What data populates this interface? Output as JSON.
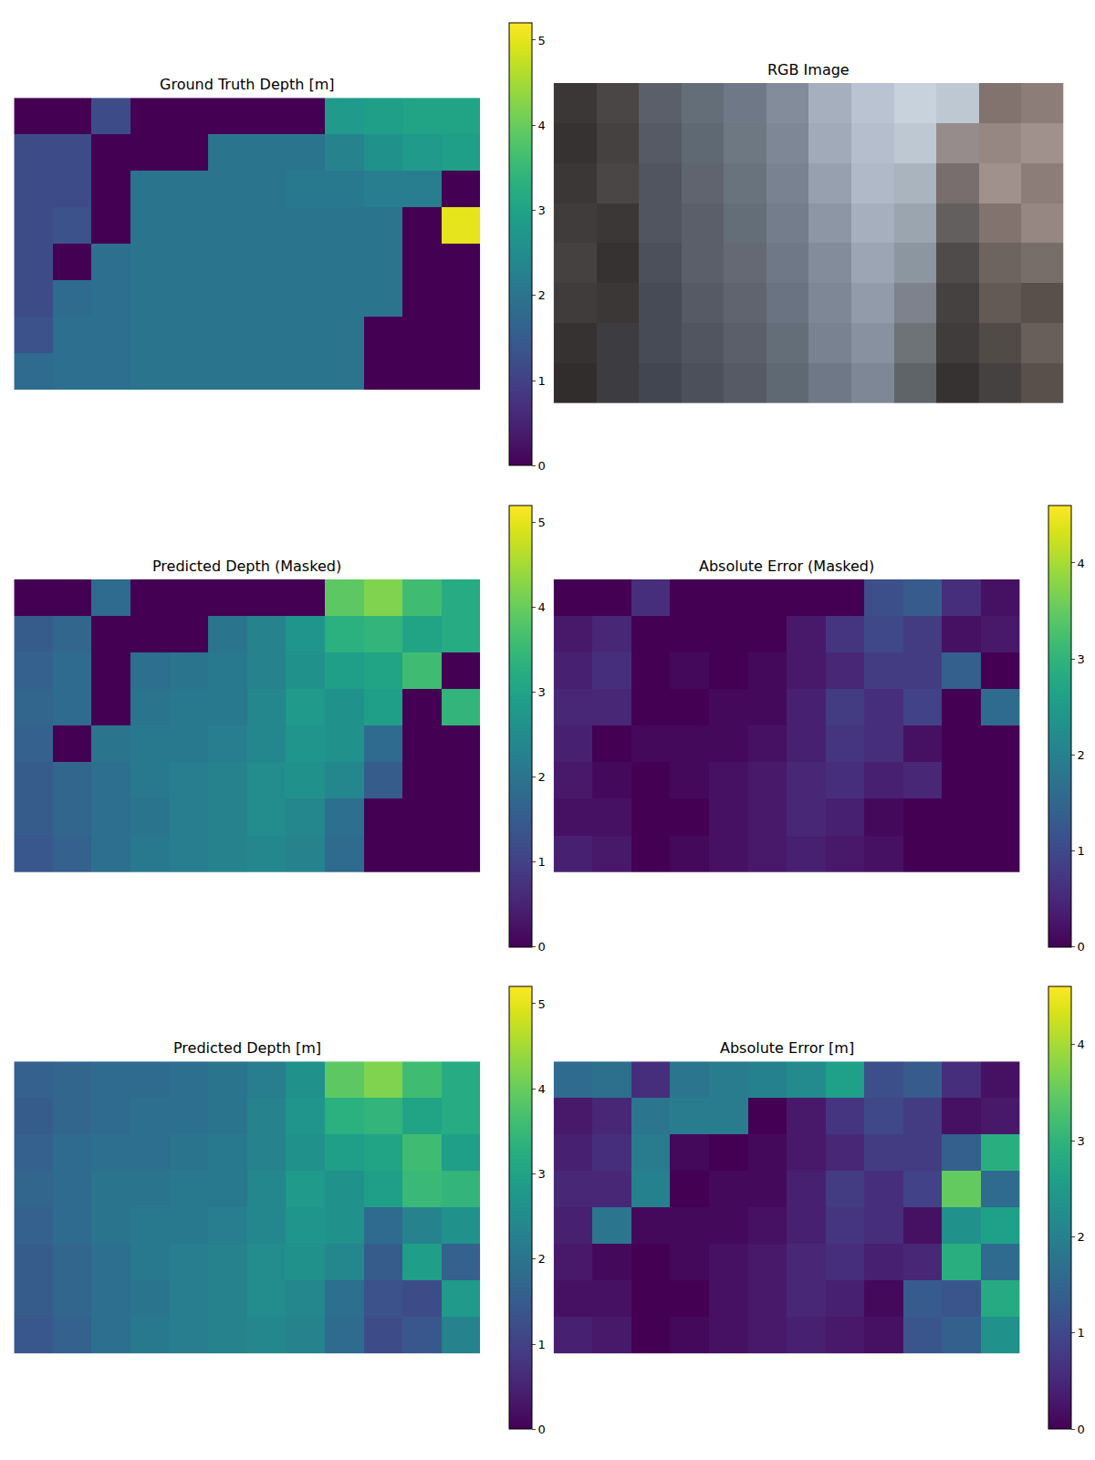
{
  "chart_data": [
    {
      "type": "heatmap",
      "title": "Ground Truth Depth [m]",
      "color": "viridis",
      "tick_labels": false,
      "colorbar_range": [
        0,
        5.2
      ],
      "colorbar_ticks": [
        0,
        1,
        2,
        3,
        4,
        5
      ],
      "z": [
        [
          0,
          0,
          1.2,
          0,
          0,
          0,
          0,
          0,
          2.8,
          2.9,
          3.0,
          3.0
        ],
        [
          1.2,
          1.2,
          0,
          0,
          0,
          2.0,
          2.0,
          2.0,
          2.3,
          2.6,
          2.8,
          2.9
        ],
        [
          1.2,
          1.2,
          0,
          2.0,
          2.0,
          2.0,
          2.0,
          2.1,
          2.1,
          2.2,
          2.2,
          0
        ],
        [
          1.2,
          1.3,
          0,
          2.0,
          2.0,
          2.0,
          2.0,
          2.0,
          2.0,
          2.0,
          0,
          5.0
        ],
        [
          1.2,
          0,
          1.9,
          2.0,
          2.0,
          2.0,
          2.0,
          2.0,
          2.0,
          2.0,
          0,
          0
        ],
        [
          1.2,
          1.8,
          1.9,
          2.0,
          2.0,
          2.0,
          2.0,
          2.0,
          2.0,
          2.0,
          0,
          0
        ],
        [
          1.3,
          1.9,
          1.9,
          2.0,
          2.0,
          2.0,
          2.0,
          2.0,
          2.0,
          0,
          0,
          0
        ],
        [
          1.8,
          1.9,
          1.9,
          2.0,
          2.0,
          2.0,
          2.0,
          2.0,
          2.0,
          0,
          0,
          0
        ]
      ]
    },
    {
      "type": "image",
      "title": "RGB Image",
      "tick_labels": false,
      "pixels": [
        [
          [
            60,
            55,
            55
          ],
          [
            75,
            70,
            70
          ],
          [
            90,
            95,
            105
          ],
          [
            100,
            110,
            120
          ],
          [
            110,
            120,
            135
          ],
          [
            130,
            140,
            155
          ],
          [
            165,
            175,
            190
          ],
          [
            185,
            195,
            210
          ],
          [
            200,
            210,
            220
          ],
          [
            190,
            200,
            210
          ],
          [
            130,
            115,
            110
          ],
          [
            140,
            125,
            120
          ]
        ],
        [
          [
            55,
            50,
            50
          ],
          [
            70,
            65,
            65
          ],
          [
            85,
            90,
            100
          ],
          [
            95,
            105,
            115
          ],
          [
            110,
            120,
            130
          ],
          [
            125,
            135,
            150
          ],
          [
            160,
            170,
            185
          ],
          [
            180,
            190,
            205
          ],
          [
            190,
            200,
            210
          ],
          [
            150,
            140,
            140
          ],
          [
            150,
            135,
            130
          ],
          [
            160,
            145,
            140
          ]
        ],
        [
          [
            60,
            55,
            55
          ],
          [
            75,
            70,
            70
          ],
          [
            80,
            85,
            95
          ],
          [
            95,
            100,
            110
          ],
          [
            105,
            115,
            125
          ],
          [
            120,
            130,
            145
          ],
          [
            150,
            160,
            175
          ],
          [
            175,
            185,
            200
          ],
          [
            170,
            180,
            190
          ],
          [
            120,
            110,
            110
          ],
          [
            160,
            145,
            140
          ],
          [
            140,
            125,
            120
          ]
        ],
        [
          [
            65,
            60,
            60
          ],
          [
            60,
            55,
            55
          ],
          [
            80,
            85,
            95
          ],
          [
            90,
            95,
            105
          ],
          [
            100,
            110,
            120
          ],
          [
            115,
            125,
            140
          ],
          [
            140,
            150,
            165
          ],
          [
            165,
            175,
            190
          ],
          [
            155,
            165,
            175
          ],
          [
            100,
            95,
            95
          ],
          [
            130,
            115,
            110
          ],
          [
            150,
            135,
            130
          ]
        ],
        [
          [
            70,
            65,
            65
          ],
          [
            55,
            50,
            50
          ],
          [
            75,
            80,
            90
          ],
          [
            90,
            95,
            105
          ],
          [
            100,
            105,
            115
          ],
          [
            110,
            120,
            135
          ],
          [
            130,
            140,
            155
          ],
          [
            155,
            165,
            180
          ],
          [
            140,
            150,
            160
          ],
          [
            80,
            75,
            75
          ],
          [
            110,
            100,
            95
          ],
          [
            120,
            110,
            105
          ]
        ],
        [
          [
            65,
            60,
            60
          ],
          [
            60,
            55,
            55
          ],
          [
            70,
            75,
            85
          ],
          [
            85,
            90,
            100
          ],
          [
            95,
            100,
            110
          ],
          [
            105,
            115,
            130
          ],
          [
            125,
            135,
            150
          ],
          [
            145,
            155,
            170
          ],
          [
            125,
            130,
            140
          ],
          [
            70,
            65,
            65
          ],
          [
            100,
            90,
            85
          ],
          [
            90,
            80,
            75
          ]
        ],
        [
          [
            55,
            50,
            50
          ],
          [
            60,
            60,
            65
          ],
          [
            70,
            75,
            85
          ],
          [
            80,
            85,
            95
          ],
          [
            90,
            95,
            105
          ],
          [
            100,
            110,
            120
          ],
          [
            120,
            130,
            145
          ],
          [
            135,
            145,
            160
          ],
          [
            110,
            115,
            120
          ],
          [
            65,
            60,
            60
          ],
          [
            80,
            75,
            70
          ],
          [
            105,
            95,
            90
          ]
        ],
        [
          [
            50,
            45,
            45
          ],
          [
            60,
            60,
            65
          ],
          [
            65,
            70,
            80
          ],
          [
            75,
            80,
            90
          ],
          [
            85,
            90,
            100
          ],
          [
            95,
            105,
            115
          ],
          [
            110,
            120,
            135
          ],
          [
            125,
            135,
            150
          ],
          [
            95,
            100,
            105
          ],
          [
            55,
            50,
            50
          ],
          [
            70,
            65,
            65
          ],
          [
            90,
            80,
            75
          ]
        ]
      ]
    },
    {
      "type": "heatmap",
      "title": "Predicted Depth (Masked)",
      "color": "viridis",
      "tick_labels": false,
      "colorbar_range": [
        0,
        5.2
      ],
      "colorbar_ticks": [
        0,
        1,
        2,
        3,
        4,
        5
      ],
      "z": [
        [
          0,
          0,
          1.8,
          0,
          0,
          0,
          0,
          0,
          3.9,
          4.2,
          3.6,
          3.2
        ],
        [
          1.5,
          1.7,
          0,
          0,
          0,
          2.0,
          2.3,
          2.7,
          3.3,
          3.4,
          3.0,
          3.2
        ],
        [
          1.6,
          1.8,
          0,
          1.9,
          2.0,
          2.1,
          2.3,
          2.6,
          2.9,
          3.0,
          3.6,
          0
        ],
        [
          1.7,
          1.8,
          0,
          2.0,
          2.1,
          2.1,
          2.4,
          2.8,
          2.6,
          2.9,
          0,
          3.4
        ],
        [
          1.6,
          0,
          2.0,
          2.1,
          2.1,
          2.2,
          2.4,
          2.7,
          2.6,
          1.8,
          0,
          0
        ],
        [
          1.5,
          1.7,
          1.9,
          2.1,
          2.2,
          2.3,
          2.5,
          2.6,
          2.4,
          1.5,
          0,
          0
        ],
        [
          1.5,
          1.7,
          1.9,
          2.0,
          2.2,
          2.3,
          2.5,
          2.4,
          1.9,
          0,
          0,
          0
        ],
        [
          1.4,
          1.6,
          1.9,
          2.1,
          2.2,
          2.3,
          2.4,
          2.3,
          1.8,
          0,
          0,
          0
        ]
      ]
    },
    {
      "type": "heatmap",
      "title": "Absolute Error (Masked)",
      "color": "viridis",
      "tick_labels": false,
      "colorbar_range": [
        0,
        4.6
      ],
      "colorbar_ticks": [
        0,
        1,
        2,
        3,
        4
      ],
      "z": [
        [
          0,
          0,
          0.6,
          0,
          0,
          0,
          0,
          0,
          1.1,
          1.3,
          0.6,
          0.2
        ],
        [
          0.3,
          0.5,
          0,
          0,
          0,
          0.0,
          0.3,
          0.7,
          1.0,
          0.8,
          0.2,
          0.3
        ],
        [
          0.4,
          0.6,
          0,
          0.1,
          0.0,
          0.1,
          0.3,
          0.5,
          0.8,
          0.8,
          1.4,
          0
        ],
        [
          0.5,
          0.5,
          0,
          0.0,
          0.1,
          0.1,
          0.4,
          0.8,
          0.6,
          0.9,
          0,
          1.6
        ],
        [
          0.4,
          0,
          0.1,
          0.1,
          0.1,
          0.2,
          0.4,
          0.7,
          0.6,
          0.2,
          0,
          0
        ],
        [
          0.3,
          0.1,
          0.0,
          0.1,
          0.2,
          0.3,
          0.5,
          0.6,
          0.4,
          0.5,
          0,
          0
        ],
        [
          0.2,
          0.2,
          0.0,
          0.0,
          0.2,
          0.3,
          0.5,
          0.4,
          0.1,
          0,
          0,
          0
        ],
        [
          0.4,
          0.3,
          0.0,
          0.1,
          0.2,
          0.3,
          0.4,
          0.3,
          0.2,
          0,
          0,
          0
        ]
      ]
    },
    {
      "type": "heatmap",
      "title": "Predicted Depth [m]",
      "color": "viridis",
      "tick_labels": false,
      "colorbar_range": [
        0,
        5.2
      ],
      "colorbar_ticks": [
        0,
        1,
        2,
        3,
        4,
        5
      ],
      "z": [
        [
          1.6,
          1.7,
          1.8,
          1.8,
          1.9,
          2.0,
          2.2,
          2.6,
          3.9,
          4.2,
          3.6,
          3.2
        ],
        [
          1.5,
          1.7,
          1.8,
          1.9,
          1.9,
          2.0,
          2.3,
          2.7,
          3.3,
          3.4,
          3.0,
          3.2
        ],
        [
          1.6,
          1.8,
          1.9,
          1.9,
          2.0,
          2.1,
          2.3,
          2.6,
          2.9,
          3.0,
          3.6,
          2.9
        ],
        [
          1.7,
          1.8,
          2.0,
          2.0,
          2.1,
          2.1,
          2.4,
          2.8,
          2.6,
          2.9,
          3.5,
          3.4
        ],
        [
          1.6,
          1.8,
          2.0,
          2.1,
          2.1,
          2.2,
          2.4,
          2.7,
          2.6,
          1.8,
          2.3,
          2.6
        ],
        [
          1.5,
          1.7,
          1.9,
          2.1,
          2.2,
          2.3,
          2.5,
          2.6,
          2.4,
          1.5,
          2.9,
          1.6
        ],
        [
          1.5,
          1.7,
          1.9,
          2.0,
          2.2,
          2.3,
          2.5,
          2.4,
          1.9,
          1.3,
          1.2,
          2.8
        ],
        [
          1.4,
          1.6,
          1.9,
          2.1,
          2.2,
          2.3,
          2.4,
          2.3,
          1.8,
          1.2,
          1.4,
          2.3
        ]
      ]
    },
    {
      "type": "heatmap",
      "title": "Absolute Error [m]",
      "color": "viridis",
      "tick_labels": false,
      "colorbar_range": [
        0,
        4.6
      ],
      "colorbar_ticks": [
        0,
        1,
        2,
        3,
        4
      ],
      "z": [
        [
          1.6,
          1.7,
          0.6,
          1.8,
          1.9,
          2.0,
          2.2,
          2.6,
          1.1,
          1.3,
          0.6,
          0.2
        ],
        [
          0.3,
          0.5,
          1.8,
          1.9,
          1.9,
          0.0,
          0.3,
          0.7,
          1.0,
          0.8,
          0.2,
          0.3
        ],
        [
          0.4,
          0.6,
          1.9,
          0.1,
          0.0,
          0.1,
          0.3,
          0.5,
          0.8,
          0.8,
          1.4,
          2.9
        ],
        [
          0.5,
          0.5,
          2.0,
          0.0,
          0.1,
          0.1,
          0.4,
          0.8,
          0.6,
          0.9,
          3.5,
          1.6
        ],
        [
          0.4,
          1.8,
          0.1,
          0.1,
          0.1,
          0.2,
          0.4,
          0.7,
          0.6,
          0.2,
          2.3,
          2.6
        ],
        [
          0.3,
          0.1,
          0.0,
          0.1,
          0.2,
          0.3,
          0.5,
          0.6,
          0.4,
          0.5,
          2.9,
          1.6
        ],
        [
          0.2,
          0.2,
          0.0,
          0.0,
          0.2,
          0.3,
          0.5,
          0.4,
          0.1,
          1.3,
          1.2,
          2.8
        ],
        [
          0.4,
          0.3,
          0.0,
          0.1,
          0.2,
          0.3,
          0.4,
          0.3,
          0.2,
          1.2,
          1.4,
          2.3
        ]
      ]
    }
  ]
}
